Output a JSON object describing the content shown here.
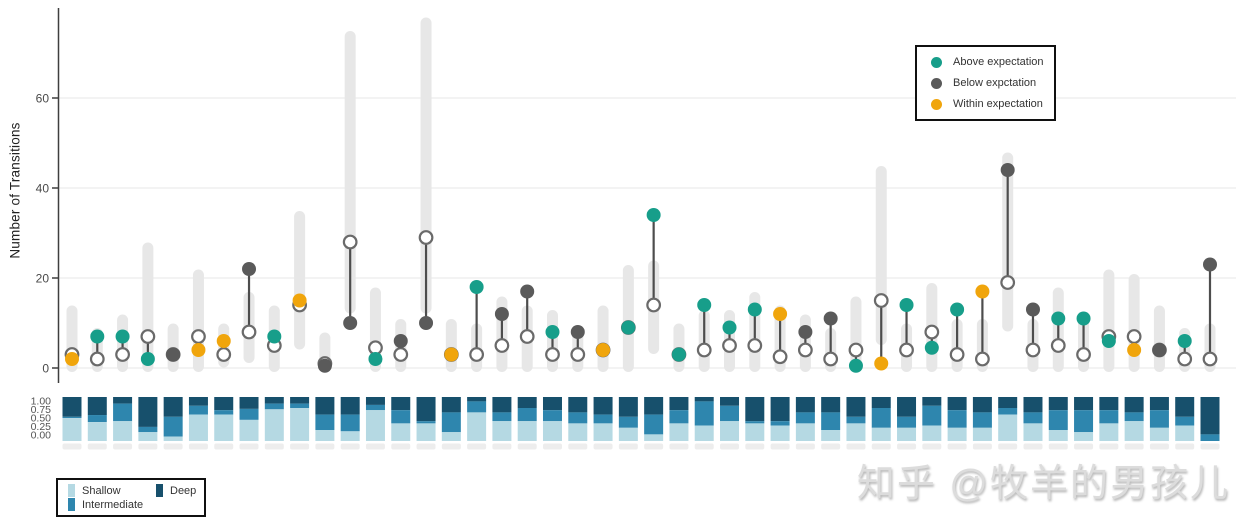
{
  "watermark": "知乎 @牧羊的男孩儿",
  "top_chart": {
    "y_axis_title": "Number of Transitions",
    "legend": {
      "items": [
        {
          "label": "Above expectation",
          "status": "above",
          "color": "#179E8A"
        },
        {
          "label": "Below expctation",
          "status": "below",
          "color": "#5A5A5A"
        },
        {
          "label": "Within expectation",
          "status": "within",
          "color": "#F0A50C"
        }
      ]
    }
  },
  "bottom_chart": {
    "legend": {
      "items": [
        {
          "label": "Shallow",
          "color": "#B5D9E3"
        },
        {
          "label": "Deep",
          "color": "#17506C"
        },
        {
          "label": "Intermediate",
          "color": "#2E86AE"
        }
      ]
    }
  },
  "chart_data": [
    {
      "type": "scatter",
      "subtype": "dumbbell-with-expectation-bands",
      "title": "",
      "ylabel": "Number of Transitions",
      "xlabel": "",
      "ylim": [
        0,
        78
      ],
      "yticks": [
        0,
        20,
        40,
        60
      ],
      "grid": true,
      "legend_position": "top-right",
      "legend_entries": [
        "Above expectation",
        "Below expctation",
        "Within expectation"
      ],
      "status_colors": {
        "above": "#179E8A",
        "below": "#5A5A5A",
        "within": "#F0A50C"
      },
      "band_color": "#E7E7E7",
      "n_groups": 46,
      "points": [
        {
          "observed": 2,
          "expected": 3,
          "status": "within",
          "band": [
            0,
            13
          ]
        },
        {
          "observed": 7,
          "expected": 2,
          "status": "above",
          "band": [
            0,
            8
          ]
        },
        {
          "observed": 7,
          "expected": 3,
          "status": "above",
          "band": [
            0,
            11
          ]
        },
        {
          "observed": 2,
          "expected": 7,
          "status": "above",
          "band": [
            0,
            27
          ]
        },
        {
          "observed": 3,
          "expected": 3,
          "status": "below",
          "band": [
            0,
            9
          ]
        },
        {
          "observed": 4,
          "expected": 7,
          "status": "within",
          "band": [
            0,
            21
          ]
        },
        {
          "observed": 6,
          "expected": 3,
          "status": "within",
          "band": [
            1,
            9
          ]
        },
        {
          "observed": 22,
          "expected": 8,
          "status": "below",
          "band": [
            2,
            16
          ]
        },
        {
          "observed": 7,
          "expected": 5,
          "status": "above",
          "band": [
            0,
            13
          ]
        },
        {
          "observed": 15,
          "expected": 14,
          "status": "within",
          "band": [
            5,
            34
          ]
        },
        {
          "observed": 0.5,
          "expected": 1,
          "status": "below",
          "band": [
            0,
            7
          ]
        },
        {
          "observed": 10,
          "expected": 28,
          "status": "below",
          "band": [
            13,
            74
          ]
        },
        {
          "observed": 2,
          "expected": 4.5,
          "status": "above",
          "band": [
            0,
            17
          ]
        },
        {
          "observed": 6,
          "expected": 3,
          "status": "below",
          "band": [
            0,
            10
          ]
        },
        {
          "observed": 10,
          "expected": 29,
          "status": "below",
          "band": [
            13,
            77
          ]
        },
        {
          "observed": 3,
          "expected": 3,
          "status": "within",
          "band": [
            0,
            10
          ]
        },
        {
          "observed": 18,
          "expected": 3,
          "status": "above",
          "band": [
            0,
            9
          ]
        },
        {
          "observed": 12,
          "expected": 5,
          "status": "below",
          "band": [
            0,
            15
          ]
        },
        {
          "observed": 17,
          "expected": 7,
          "status": "below",
          "band": [
            0,
            13
          ]
        },
        {
          "observed": 8,
          "expected": 3,
          "status": "above",
          "band": [
            0,
            12
          ]
        },
        {
          "observed": 8,
          "expected": 3,
          "status": "below",
          "band": [
            0,
            8
          ]
        },
        {
          "observed": 4,
          "expected": 4,
          "status": "within",
          "band": [
            0,
            13
          ]
        },
        {
          "observed": 9,
          "expected": 9,
          "status": "above",
          "band": [
            0,
            22
          ]
        },
        {
          "observed": 34,
          "expected": 14,
          "status": "above",
          "band": [
            4,
            23
          ]
        },
        {
          "observed": 3,
          "expected": 3,
          "status": "above",
          "band": [
            0,
            9
          ]
        },
        {
          "observed": 14,
          "expected": 4,
          "status": "above",
          "band": [
            0,
            12
          ]
        },
        {
          "observed": 9,
          "expected": 5,
          "status": "above",
          "band": [
            0,
            12
          ]
        },
        {
          "observed": 13,
          "expected": 5,
          "status": "above",
          "band": [
            0,
            16
          ]
        },
        {
          "observed": 12,
          "expected": 2.5,
          "status": "within",
          "band": [
            0,
            13
          ]
        },
        {
          "observed": 8,
          "expected": 4,
          "status": "below",
          "band": [
            0,
            11
          ]
        },
        {
          "observed": 11,
          "expected": 2,
          "status": "below",
          "band": [
            0,
            8
          ]
        },
        {
          "observed": 0.5,
          "expected": 4,
          "status": "above",
          "band": [
            0,
            15
          ]
        },
        {
          "observed": 1,
          "expected": 15,
          "status": "within",
          "band": [
            6,
            44
          ]
        },
        {
          "observed": 14,
          "expected": 4,
          "status": "above",
          "band": [
            0,
            9
          ]
        },
        {
          "observed": 4.5,
          "expected": 8,
          "status": "above",
          "band": [
            0,
            18
          ]
        },
        {
          "observed": 13,
          "expected": 3,
          "status": "above",
          "band": [
            0,
            10
          ]
        },
        {
          "observed": 17,
          "expected": 2,
          "status": "within",
          "band": [
            0,
            10
          ]
        },
        {
          "observed": 44,
          "expected": 19,
          "status": "below",
          "band": [
            9,
            47
          ]
        },
        {
          "observed": 13,
          "expected": 4,
          "status": "below",
          "band": [
            0,
            10
          ]
        },
        {
          "observed": 11,
          "expected": 5,
          "status": "above",
          "band": [
            0,
            17
          ]
        },
        {
          "observed": 11,
          "expected": 3,
          "status": "above",
          "band": [
            0,
            10
          ]
        },
        {
          "observed": 6,
          "expected": 7,
          "status": "above",
          "band": [
            0,
            21
          ]
        },
        {
          "observed": 4,
          "expected": 7,
          "status": "within",
          "band": [
            0,
            20
          ]
        },
        {
          "observed": 4,
          "expected": 4,
          "status": "below",
          "band": [
            0,
            13
          ]
        },
        {
          "observed": 6,
          "expected": 2,
          "status": "above",
          "band": [
            0,
            8
          ]
        },
        {
          "observed": 23,
          "expected": 2,
          "status": "below",
          "band": [
            0,
            9
          ]
        }
      ]
    },
    {
      "type": "bar",
      "subtype": "stacked-proportion",
      "title": "",
      "ylim": [
        0,
        1
      ],
      "yticks": [
        "1.00",
        "0.75",
        "0.50",
        "0.25",
        "0.00"
      ],
      "stack_order_top_to_bottom": [
        "Deep",
        "Intermediate",
        "Shallow"
      ],
      "n_bars": 46,
      "series": [
        {
          "name": "Shallow",
          "color": "#B5D9E3",
          "values": [
            0.52,
            0.43,
            0.45,
            0.2,
            0.1,
            0.6,
            0.6,
            0.48,
            0.72,
            0.75,
            0.25,
            0.22,
            0.7,
            0.4,
            0.4,
            0.2,
            0.65,
            0.45,
            0.45,
            0.45,
            0.4,
            0.4,
            0.3,
            0.15,
            0.4,
            0.35,
            0.45,
            0.4,
            0.35,
            0.4,
            0.25,
            0.4,
            0.3,
            0.3,
            0.35,
            0.3,
            0.3,
            0.6,
            0.4,
            0.25,
            0.2,
            0.4,
            0.45,
            0.3,
            0.35,
            0.0
          ]
        },
        {
          "name": "Intermediate",
          "color": "#2E86AE",
          "values": [
            0.03,
            0.16,
            0.4,
            0.12,
            0.45,
            0.2,
            0.1,
            0.25,
            0.13,
            0.1,
            0.35,
            0.38,
            0.12,
            0.3,
            0.05,
            0.45,
            0.25,
            0.2,
            0.3,
            0.25,
            0.25,
            0.2,
            0.25,
            0.45,
            0.3,
            0.55,
            0.35,
            0.05,
            0.1,
            0.25,
            0.4,
            0.15,
            0.45,
            0.25,
            0.45,
            0.4,
            0.35,
            0.15,
            0.25,
            0.45,
            0.5,
            0.3,
            0.2,
            0.4,
            0.2,
            0.15
          ]
        },
        {
          "name": "Deep",
          "color": "#17506C",
          "values": [
            0.45,
            0.41,
            0.15,
            0.68,
            0.45,
            0.2,
            0.3,
            0.27,
            0.15,
            0.15,
            0.4,
            0.4,
            0.18,
            0.3,
            0.55,
            0.35,
            0.1,
            0.35,
            0.25,
            0.3,
            0.35,
            0.4,
            0.45,
            0.4,
            0.3,
            0.1,
            0.2,
            0.55,
            0.55,
            0.35,
            0.35,
            0.45,
            0.25,
            0.45,
            0.2,
            0.3,
            0.35,
            0.25,
            0.35,
            0.3,
            0.3,
            0.3,
            0.35,
            0.3,
            0.45,
            0.85
          ]
        }
      ]
    }
  ]
}
